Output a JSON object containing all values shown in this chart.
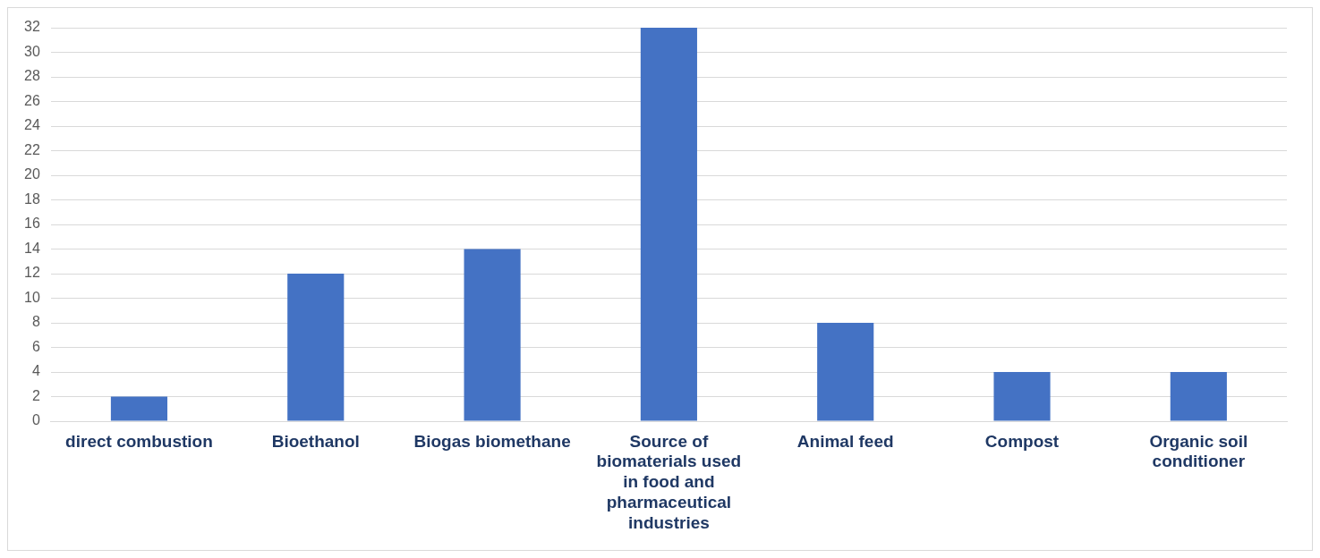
{
  "chart_data": {
    "type": "bar",
    "categories": [
      "direct combustion",
      "Bioethanol",
      "Biogas biomethane",
      "Source of biomaterials used in food and pharmaceutical industries",
      "Animal feed",
      "Compost",
      "Organic soil conditioner"
    ],
    "values": [
      2,
      12,
      14,
      32,
      8,
      4,
      4
    ],
    "color": "#4472c4",
    "ylim": [
      0,
      32
    ],
    "yticks": [
      0,
      2,
      4,
      6,
      8,
      10,
      12,
      14,
      16,
      18,
      20,
      22,
      24,
      26,
      28,
      30,
      32
    ],
    "grid": "y",
    "legend": false
  }
}
